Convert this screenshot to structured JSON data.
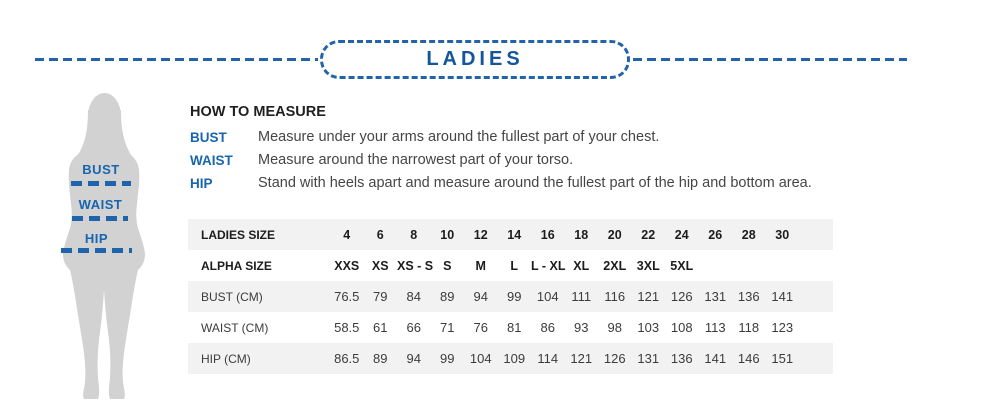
{
  "banner": {
    "title": "LADIES"
  },
  "figure": {
    "labels": [
      "BUST",
      "WAIST",
      "HIP"
    ]
  },
  "how_to_measure": {
    "heading": "HOW TO MEASURE",
    "items": [
      {
        "label": "BUST",
        "text": "Measure under your arms around the fullest part of your chest."
      },
      {
        "label": "WAIST",
        "text": "Measure around the narrowest part of your torso."
      },
      {
        "label": "HIP",
        "text": "Stand with heels apart and measure around the fullest part of the hip and bottom area."
      }
    ]
  },
  "size_table": {
    "rows": [
      {
        "label": "LADIES SIZE",
        "header": true,
        "values": [
          "4",
          "6",
          "8",
          "10",
          "12",
          "14",
          "16",
          "18",
          "20",
          "22",
          "24",
          "26",
          "28",
          "30"
        ]
      },
      {
        "label": "ALPHA SIZE",
        "header": true,
        "values": [
          "XXS",
          "XS",
          "XS - S",
          "S",
          "M",
          "L",
          "L - XL",
          "XL",
          "2XL",
          "3XL",
          "5XL",
          "",
          "",
          ""
        ]
      },
      {
        "label": "BUST (CM)",
        "header": false,
        "values": [
          "76.5",
          "79",
          "84",
          "89",
          "94",
          "99",
          "104",
          "111",
          "116",
          "121",
          "126",
          "131",
          "136",
          "141"
        ]
      },
      {
        "label": "WAIST (CM)",
        "header": false,
        "values": [
          "58.5",
          "61",
          "66",
          "71",
          "76",
          "81",
          "86",
          "93",
          "98",
          "103",
          "108",
          "113",
          "118",
          "123"
        ]
      },
      {
        "label": "HIP (CM)",
        "header": false,
        "values": [
          "86.5",
          "89",
          "94",
          "99",
          "104",
          "109",
          "114",
          "121",
          "126",
          "131",
          "136",
          "141",
          "146",
          "151"
        ]
      }
    ]
  },
  "colors": {
    "accent_blue": "#1766ad",
    "title_blue": "#14569b",
    "dash_blue": "#2263aa",
    "silhouette_gray": "#d2d2d3",
    "row_gray": "#f2f2f2"
  }
}
